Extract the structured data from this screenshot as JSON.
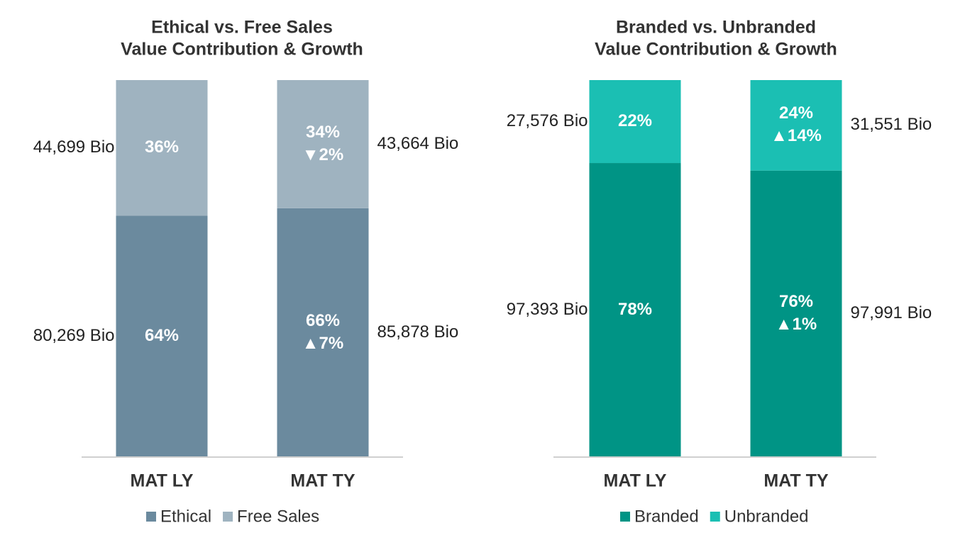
{
  "chart_data": [
    {
      "type": "bar",
      "stacked": true,
      "title": [
        "Ethical vs. Free Sales",
        "Value Contribution & Growth"
      ],
      "categories": [
        "MAT LY",
        "MAT TY"
      ],
      "ylim": [
        0,
        100
      ],
      "series": [
        {
          "name": "Ethical",
          "color": "#6b8a9e",
          "values": [
            64,
            66
          ],
          "value_labels": [
            "64%",
            "66%"
          ],
          "growth_labels": [
            null,
            "▲7%"
          ],
          "amount_labels": [
            "80,269 Bio",
            "85,878 Bio"
          ]
        },
        {
          "name": "Free Sales",
          "color": "#9fb3c0",
          "values": [
            36,
            34
          ],
          "value_labels": [
            "36%",
            "34%"
          ],
          "growth_labels": [
            null,
            "▼2%"
          ],
          "amount_labels": [
            "44,699 Bio",
            "43,664 Bio"
          ]
        }
      ]
    },
    {
      "type": "bar",
      "stacked": true,
      "title": [
        "Branded vs. Unbranded",
        "Value Contribution & Growth"
      ],
      "categories": [
        "MAT LY",
        "MAT TY"
      ],
      "ylim": [
        0,
        100
      ],
      "series": [
        {
          "name": "Branded",
          "color": "#009485",
          "values": [
            78,
            76
          ],
          "value_labels": [
            "78%",
            "76%"
          ],
          "growth_labels": [
            null,
            "▲1%"
          ],
          "amount_labels": [
            "97,393 Bio",
            "97,991 Bio"
          ]
        },
        {
          "name": "Unbranded",
          "color": "#1bbfb3",
          "values": [
            22,
            24
          ],
          "value_labels": [
            "22%",
            "24%"
          ],
          "growth_labels": [
            null,
            "▲14%"
          ],
          "amount_labels": [
            "27,576 Bio",
            "31,551 Bio"
          ]
        }
      ]
    }
  ]
}
